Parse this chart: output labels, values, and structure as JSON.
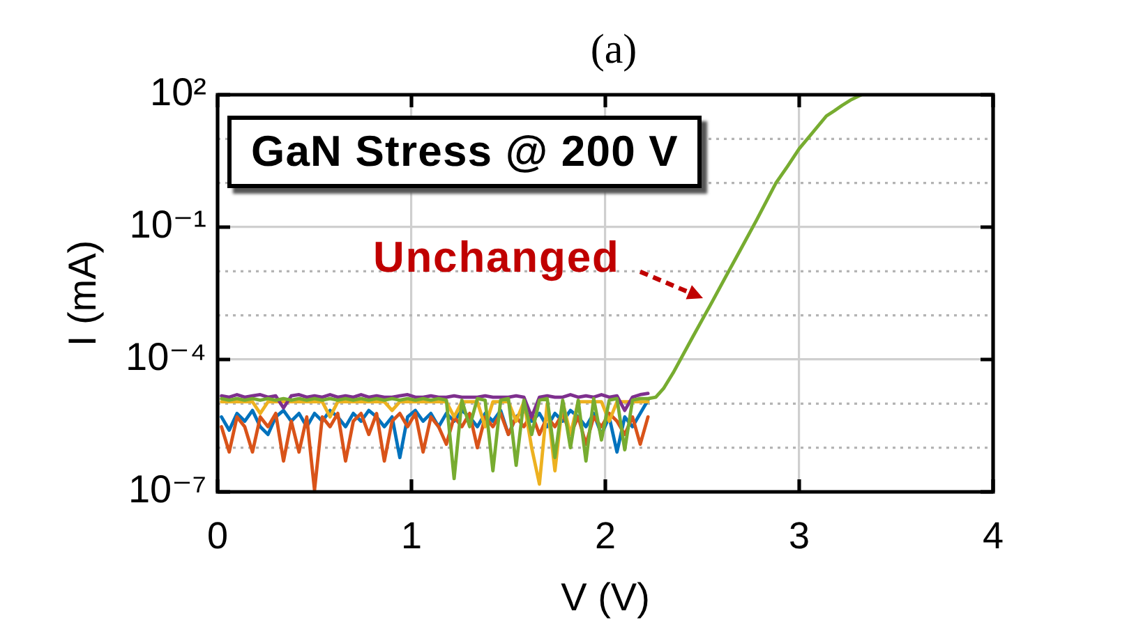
{
  "chart_data": {
    "type": "line",
    "xlabel": "V (V)",
    "ylabel": "I (mA)",
    "annotations": [
      "(a)",
      "GaN Stress @ 200 V",
      {
        "text": "Unchanged",
        "x": 2.55,
        "y": 0.002
      }
    ],
    "x": [
      0.02,
      0.06,
      0.1,
      0.14,
      0.18,
      0.22,
      0.26,
      0.3,
      0.34,
      0.38,
      0.42,
      0.46,
      0.5,
      0.54,
      0.58,
      0.62,
      0.66,
      0.7,
      0.74,
      0.78,
      0.82,
      0.86,
      0.9,
      0.94,
      0.98,
      1.02,
      1.06,
      1.1,
      1.14,
      1.18,
      1.22,
      1.26,
      1.3,
      1.34,
      1.38,
      1.42,
      1.46,
      1.5,
      1.54,
      1.58,
      1.62,
      1.66,
      1.7,
      1.74,
      1.78,
      1.82,
      1.86,
      1.9,
      1.94,
      1.98,
      2.02,
      2.06,
      2.1,
      2.14,
      2.18,
      2.22
    ],
    "series": [
      {
        "color": "#0072bd",
        "values": [
          5e-06,
          2.5e-06,
          6e-06,
          4e-06,
          7e-06,
          3e-06,
          2e-06,
          5e-06,
          7e-06,
          4e-06,
          6e-06,
          3e-06,
          6e-06,
          4e-06,
          7e-06,
          5e-06,
          3e-06,
          6e-06,
          4e-06,
          7e-06,
          5e-06,
          3e-06,
          5e-06,
          6e-07,
          5e-06,
          7e-06,
          4e-06,
          6e-06,
          3e-06,
          6e-06,
          4e-06,
          7e-06,
          5e-06,
          3e-06,
          6e-06,
          4e-06,
          7e-06,
          2e-06,
          5e-06,
          7e-06,
          4e-06,
          6e-06,
          3e-06,
          6e-06,
          4e-06,
          7e-06,
          5e-06,
          3e-06,
          6e-06,
          2e-06,
          5e-06,
          8e-07,
          5e-06,
          3e-06,
          6e-06,
          1.2e-05
        ]
      },
      {
        "color": "#d95319",
        "values": [
          3e-06,
          8e-07,
          5e-06,
          3e-06,
          8e-07,
          5e-06,
          3e-06,
          6e-06,
          5e-07,
          4e-06,
          8e-07,
          5e-06,
          1.1e-07,
          5e-06,
          3e-06,
          6e-06,
          5e-07,
          4e-06,
          6e-06,
          2e-06,
          6e-06,
          5e-07,
          4e-06,
          6e-06,
          3e-06,
          6e-06,
          8e-07,
          5e-06,
          3e-06,
          1.2e-06,
          5e-06,
          3e-06,
          6e-06,
          1e-06,
          5e-06,
          3e-06,
          6e-06,
          2e-06,
          5e-06,
          3e-06,
          6e-06,
          2e-06,
          5e-06,
          3e-06,
          6e-06,
          2e-06,
          5e-06,
          1.2e-06,
          5e-06,
          3e-06,
          6e-06,
          4e-06,
          2e-06,
          5e-06,
          1.2e-06,
          5e-06
        ]
      },
      {
        "color": "#edb120",
        "values": [
          1.1e-05,
          1.1e-05,
          1.1e-05,
          1.1e-05,
          1.1e-05,
          6e-06,
          1.1e-05,
          1.1e-05,
          1.1e-05,
          1.1e-05,
          1.1e-05,
          1.1e-05,
          1.1e-05,
          1.1e-05,
          5e-06,
          1.1e-05,
          1.1e-05,
          1.1e-05,
          1.1e-05,
          1.1e-05,
          1.1e-05,
          1.1e-05,
          7e-06,
          1.1e-05,
          1.1e-05,
          1.1e-05,
          1.1e-05,
          1.1e-05,
          1.1e-05,
          1.1e-05,
          5e-06,
          1.1e-05,
          1.1e-05,
          1.1e-05,
          3e-06,
          1.1e-05,
          1.1e-05,
          1.1e-05,
          4e-06,
          1.1e-05,
          1e-06,
          1.5e-07,
          1e-05,
          3e-07,
          1.1e-05,
          2e-06,
          1.1e-05,
          1.1e-05,
          1.1e-05,
          1.1e-05,
          4e-06,
          1.1e-05,
          1.1e-05,
          1.1e-05,
          1.1e-05,
          1.1e-05
        ]
      },
      {
        "color": "#7e2f8e",
        "values": [
          1.5e-05,
          1.4e-05,
          1.6e-05,
          1.4e-05,
          1.5e-05,
          1.6e-05,
          1.4e-05,
          1.5e-05,
          8e-06,
          1.5e-05,
          1.6e-05,
          1.4e-05,
          1.5e-05,
          1.4e-05,
          1.6e-05,
          1.4e-05,
          1.5e-05,
          1.4e-05,
          1.6e-05,
          1.4e-05,
          1.5e-05,
          1.4e-05,
          1.4e-05,
          1.5e-05,
          1.6e-05,
          1.4e-05,
          1.4e-05,
          1.5e-05,
          1.4e-05,
          1.4e-05,
          1.5e-05,
          1.4e-05,
          1.4e-05,
          1.4e-05,
          1.5e-05,
          1.4e-05,
          1.4e-05,
          1.4e-05,
          1.5e-05,
          1.4e-05,
          5e-06,
          1.4e-05,
          1.5e-05,
          1.4e-05,
          1.4e-05,
          1.6e-05,
          1.4e-05,
          1.5e-05,
          1.4e-05,
          1.6e-05,
          1.4e-05,
          1.5e-05,
          7e-06,
          1.4e-05,
          1.6e-05,
          1.7e-05
        ]
      },
      {
        "color": "#77ac30",
        "x": [
          0.02,
          0.06,
          0.1,
          0.14,
          0.18,
          0.22,
          0.26,
          0.3,
          0.34,
          0.38,
          0.42,
          0.46,
          0.5,
          0.54,
          0.58,
          0.62,
          0.66,
          0.7,
          0.74,
          0.78,
          0.82,
          0.86,
          0.9,
          0.94,
          0.98,
          1.02,
          1.06,
          1.1,
          1.14,
          1.18,
          1.22,
          1.26,
          1.3,
          1.34,
          1.38,
          1.42,
          1.46,
          1.5,
          1.54,
          1.58,
          1.62,
          1.66,
          1.7,
          1.74,
          1.78,
          1.82,
          1.86,
          1.9,
          1.94,
          1.98,
          2.02,
          2.06,
          2.1,
          2.14,
          2.18,
          2.22,
          2.26,
          2.3,
          2.35,
          2.45,
          2.55,
          2.62,
          2.69,
          2.78,
          2.88,
          2.94,
          3,
          3.07,
          3.14,
          3.18,
          3.22,
          3.27,
          3.32
        ],
        "values": [
          1.3e-05,
          1.2e-05,
          1.3e-05,
          1.2e-05,
          1.3e-05,
          1.2e-05,
          1.3e-05,
          1.2e-05,
          1.3e-05,
          1.2e-05,
          1.3e-05,
          1.2e-05,
          1.3e-05,
          1.2e-05,
          1.3e-05,
          1.2e-05,
          1.3e-05,
          1.2e-05,
          1.3e-05,
          1.2e-05,
          1.3e-05,
          1.2e-05,
          1.3e-05,
          1.2e-05,
          1.3e-05,
          1.2e-05,
          1.3e-05,
          1.2e-05,
          1.3e-05,
          1.2e-05,
          2e-07,
          1.2e-05,
          3e-06,
          1.3e-05,
          1.2e-05,
          3e-07,
          1.2e-05,
          1.3e-05,
          4e-07,
          1.2e-05,
          2e-06,
          1.2e-05,
          1.3e-05,
          6e-07,
          1.2e-05,
          1e-06,
          1.2e-05,
          5e-07,
          1.3e-05,
          1.5e-06,
          1.2e-05,
          1.3e-05,
          9e-07,
          1.2e-05,
          1.3e-05,
          1.3e-05,
          1.4e-05,
          2.2e-05,
          5e-05,
          0.00032,
          0.002,
          0.0074,
          0.027,
          0.145,
          1,
          2.4,
          6,
          14,
          33,
          43,
          57,
          78,
          100
        ]
      }
    ],
    "xlim": [
      0,
      4
    ],
    "xticks": [
      0,
      1,
      2,
      3,
      4
    ],
    "ylim": [
      1e-07,
      100
    ],
    "yticks": [
      {
        "value": 1e-07,
        "label": "10⁻⁷"
      },
      {
        "value": 0.0001,
        "label": "10⁻⁴"
      },
      {
        "value": 0.1,
        "label": "10⁻¹"
      },
      {
        "value": 100,
        "label": "10²"
      }
    ],
    "log": "y",
    "grid": true,
    "marker": "none"
  }
}
